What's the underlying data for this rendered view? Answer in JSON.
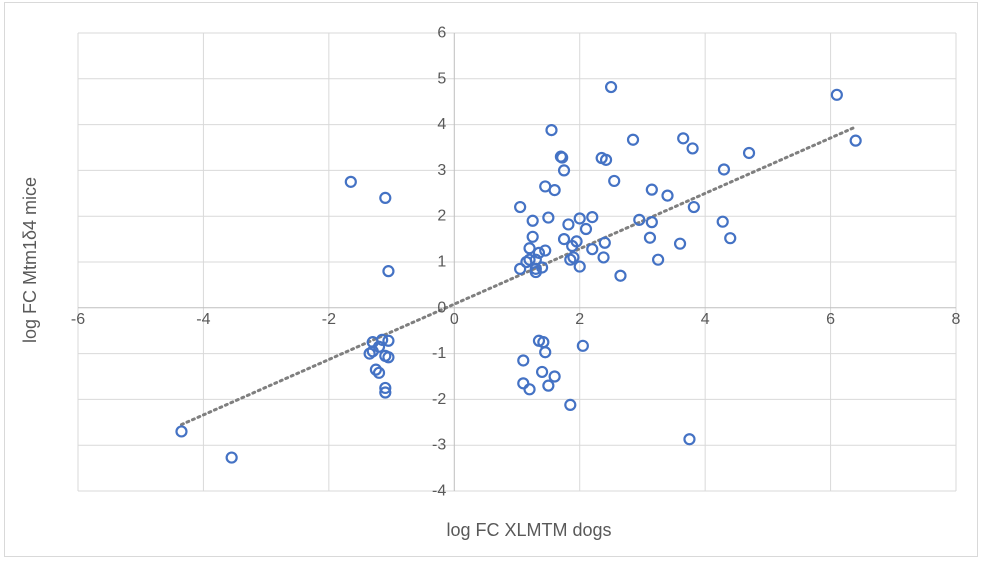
{
  "chart_data": {
    "type": "scatter",
    "title": "",
    "xlabel": "log FC XLMTM dogs",
    "ylabel": "log FC Mtm1δ4 mice",
    "xlim": [
      -6,
      8
    ],
    "ylim": [
      -4,
      6
    ],
    "x_ticks": [
      "-6",
      "-4",
      "-2",
      "0",
      "2",
      "4",
      "6",
      "8"
    ],
    "y_ticks": [
      "6",
      "5",
      "4",
      "3",
      "2",
      "1",
      "0",
      "-1",
      "-2",
      "-3",
      "-4"
    ],
    "grid": true,
    "legend": "none",
    "colors": {
      "marker": "#4472c4",
      "trendline": "#7f7f7f",
      "grid": "#d9d9d9"
    },
    "trendline": {
      "type": "linear",
      "x": [
        -4.35,
        6.4
      ],
      "y": [
        -2.55,
        3.95
      ]
    },
    "points": [
      {
        "x": -4.35,
        "y": -2.7
      },
      {
        "x": -3.55,
        "y": -3.27
      },
      {
        "x": -1.65,
        "y": 2.75
      },
      {
        "x": -1.1,
        "y": 2.4
      },
      {
        "x": -1.05,
        "y": 0.8
      },
      {
        "x": -1.3,
        "y": -0.75
      },
      {
        "x": -1.15,
        "y": -0.7
      },
      {
        "x": -1.05,
        "y": -0.72
      },
      {
        "x": -1.3,
        "y": -0.95
      },
      {
        "x": -1.35,
        "y": -1.0
      },
      {
        "x": -1.1,
        "y": -1.05
      },
      {
        "x": -1.25,
        "y": -1.35
      },
      {
        "x": -1.2,
        "y": -1.42
      },
      {
        "x": -1.1,
        "y": -1.75
      },
      {
        "x": -1.1,
        "y": -1.85
      },
      {
        "x": -1.05,
        "y": -1.08
      },
      {
        "x": -1.2,
        "y": -0.85
      },
      {
        "x": 1.05,
        "y": 2.2
      },
      {
        "x": 1.25,
        "y": 1.9
      },
      {
        "x": 1.5,
        "y": 1.97
      },
      {
        "x": 1.25,
        "y": 1.55
      },
      {
        "x": 1.2,
        "y": 1.3
      },
      {
        "x": 1.05,
        "y": 0.85
      },
      {
        "x": 1.15,
        "y": 1.0
      },
      {
        "x": 1.2,
        "y": 1.05
      },
      {
        "x": 1.3,
        "y": 0.78
      },
      {
        "x": 1.3,
        "y": 0.85
      },
      {
        "x": 1.35,
        "y": 1.2
      },
      {
        "x": 1.45,
        "y": 1.25
      },
      {
        "x": 1.4,
        "y": 0.88
      },
      {
        "x": 1.3,
        "y": 1.05
      },
      {
        "x": 1.1,
        "y": -1.15
      },
      {
        "x": 1.1,
        "y": -1.65
      },
      {
        "x": 1.2,
        "y": -1.78
      },
      {
        "x": 1.35,
        "y": -0.72
      },
      {
        "x": 1.42,
        "y": -0.75
      },
      {
        "x": 1.45,
        "y": -0.97
      },
      {
        "x": 1.4,
        "y": -1.4
      },
      {
        "x": 1.6,
        "y": -1.5
      },
      {
        "x": 1.5,
        "y": -1.7
      },
      {
        "x": 1.85,
        "y": -2.12
      },
      {
        "x": 1.55,
        "y": 3.88
      },
      {
        "x": 1.7,
        "y": 3.3
      },
      {
        "x": 1.72,
        "y": 3.28
      },
      {
        "x": 1.75,
        "y": 3.0
      },
      {
        "x": 1.45,
        "y": 2.65
      },
      {
        "x": 1.6,
        "y": 2.57
      },
      {
        "x": 1.75,
        "y": 1.5
      },
      {
        "x": 1.82,
        "y": 1.82
      },
      {
        "x": 1.88,
        "y": 1.35
      },
      {
        "x": 1.9,
        "y": 1.1
      },
      {
        "x": 1.85,
        "y": 1.05
      },
      {
        "x": 1.95,
        "y": 1.45
      },
      {
        "x": 2.0,
        "y": 1.95
      },
      {
        "x": 2.1,
        "y": 1.72
      },
      {
        "x": 2.2,
        "y": 1.98
      },
      {
        "x": 2.2,
        "y": 1.28
      },
      {
        "x": 2.0,
        "y": 0.9
      },
      {
        "x": 2.05,
        "y": -0.83
      },
      {
        "x": 2.5,
        "y": 4.82
      },
      {
        "x": 2.35,
        "y": 3.27
      },
      {
        "x": 2.42,
        "y": 3.23
      },
      {
        "x": 2.55,
        "y": 2.77
      },
      {
        "x": 2.4,
        "y": 1.42
      },
      {
        "x": 2.38,
        "y": 1.1
      },
      {
        "x": 2.65,
        "y": 0.7
      },
      {
        "x": 2.85,
        "y": 3.67
      },
      {
        "x": 2.95,
        "y": 1.92
      },
      {
        "x": 3.15,
        "y": 2.58
      },
      {
        "x": 3.15,
        "y": 1.87
      },
      {
        "x": 3.12,
        "y": 1.53
      },
      {
        "x": 3.25,
        "y": 1.05
      },
      {
        "x": 3.4,
        "y": 2.45
      },
      {
        "x": 3.65,
        "y": 3.7
      },
      {
        "x": 3.8,
        "y": 3.48
      },
      {
        "x": 3.82,
        "y": 2.2
      },
      {
        "x": 3.6,
        "y": 1.4
      },
      {
        "x": 3.75,
        "y": -2.87
      },
      {
        "x": 4.3,
        "y": 3.02
      },
      {
        "x": 4.28,
        "y": 1.88
      },
      {
        "x": 4.4,
        "y": 1.52
      },
      {
        "x": 4.7,
        "y": 3.38
      },
      {
        "x": 6.1,
        "y": 4.65
      },
      {
        "x": 6.4,
        "y": 3.65
      }
    ]
  }
}
